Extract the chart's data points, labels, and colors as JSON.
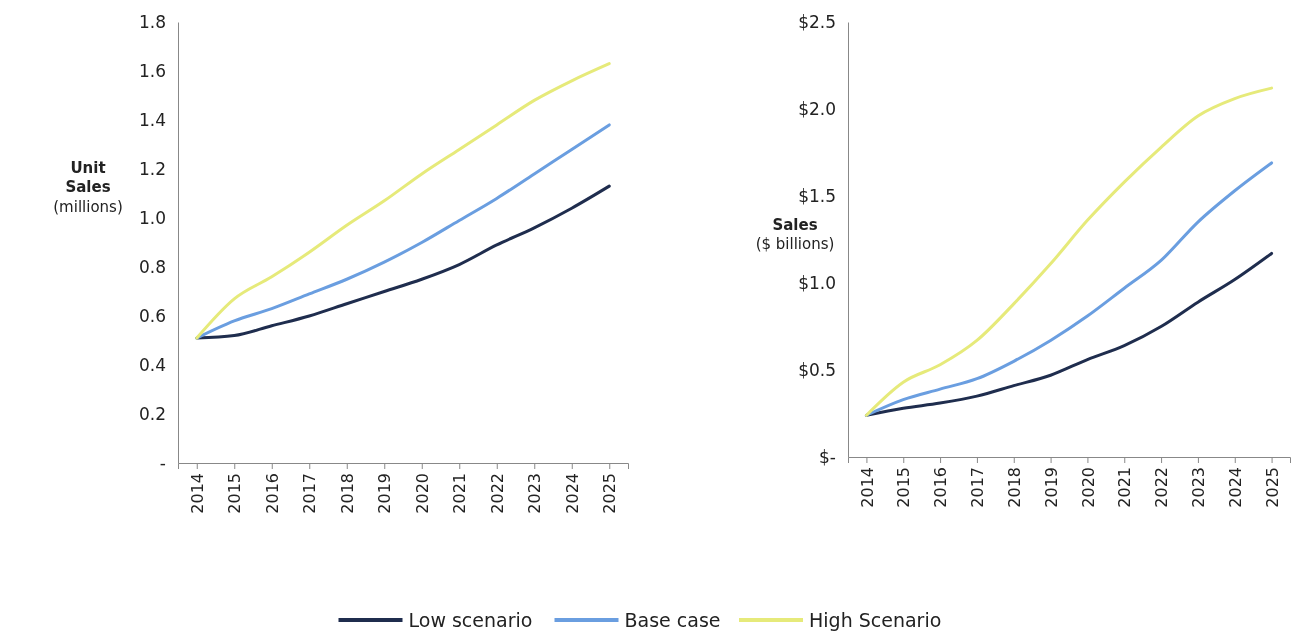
{
  "chart_data": [
    {
      "type": "line",
      "ylabel": "Unit Sales (millions)",
      "categories": [
        "2014",
        "2015",
        "2016",
        "2017",
        "2018",
        "2019",
        "2020",
        "2021",
        "2022",
        "2023",
        "2024",
        "2025"
      ],
      "ylim": [
        0,
        1.8
      ],
      "yticks": [
        {
          "value": 0,
          "label": "-"
        },
        {
          "value": 0.2,
          "label": "0.2"
        },
        {
          "value": 0.4,
          "label": "0.4"
        },
        {
          "value": 0.6,
          "label": "0.6"
        },
        {
          "value": 0.8,
          "label": "0.8"
        },
        {
          "value": 1.0,
          "label": "1.0"
        },
        {
          "value": 1.2,
          "label": "1.2"
        },
        {
          "value": 1.4,
          "label": "1.4"
        },
        {
          "value": 1.6,
          "label": "1.6"
        },
        {
          "value": 1.8,
          "label": "1.8"
        }
      ],
      "legend": "bottom",
      "series": [
        {
          "name": "Low scenario",
          "color": "#1f2d4e",
          "values": [
            0.51,
            0.52,
            0.56,
            0.6,
            0.65,
            0.7,
            0.75,
            0.81,
            0.89,
            0.96,
            1.04,
            1.13
          ]
        },
        {
          "name": "Base case",
          "color": "#6a9ee0",
          "values": [
            0.51,
            0.58,
            0.63,
            0.69,
            0.75,
            0.82,
            0.9,
            0.99,
            1.08,
            1.18,
            1.28,
            1.38
          ]
        },
        {
          "name": "High Scenario",
          "color": "#e6ea7a",
          "values": [
            0.51,
            0.67,
            0.76,
            0.86,
            0.97,
            1.07,
            1.18,
            1.28,
            1.38,
            1.48,
            1.56,
            1.63
          ]
        }
      ]
    },
    {
      "type": "line",
      "ylabel": "Sales ($ billions)",
      "categories": [
        "2014",
        "2015",
        "2016",
        "2017",
        "2018",
        "2019",
        "2020",
        "2021",
        "2022",
        "2023",
        "2024",
        "2025"
      ],
      "ylim": [
        0,
        2.5
      ],
      "yticks": [
        {
          "value": 0,
          "label": "$-"
        },
        {
          "value": 0.5,
          "label": "$0.5"
        },
        {
          "value": 1.0,
          "label": "$1.0"
        },
        {
          "value": 1.5,
          "label": "$1.5"
        },
        {
          "value": 2.0,
          "label": "$2.0"
        },
        {
          "value": 2.5,
          "label": "$2.5"
        }
      ],
      "series": [
        {
          "color": "#1f2d4e",
          "values": [
            0.24,
            0.28,
            0.31,
            0.35,
            0.41,
            0.47,
            0.56,
            0.64,
            0.75,
            0.89,
            1.02,
            1.17
          ]
        },
        {
          "color": "#6a9ee0",
          "values": [
            0.24,
            0.33,
            0.39,
            0.45,
            0.55,
            0.67,
            0.81,
            0.97,
            1.13,
            1.35,
            1.53,
            1.69
          ]
        },
        {
          "color": "#e6ea7a",
          "values": [
            0.24,
            0.43,
            0.53,
            0.67,
            0.88,
            1.11,
            1.36,
            1.58,
            1.78,
            1.96,
            2.06,
            2.12
          ]
        }
      ]
    }
  ]
}
